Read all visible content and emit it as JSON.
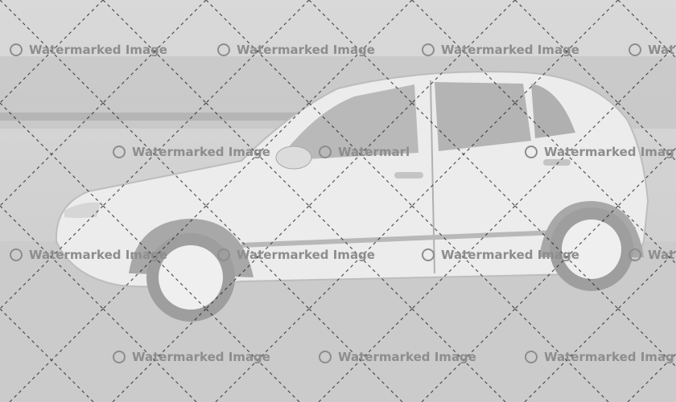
{
  "image": {
    "subject": "car-photo",
    "palette": {
      "background": "#d4d4d4",
      "car_body": "#ececec",
      "window": "#b8b8b8",
      "tire": "#9a9a9a",
      "road": "#c8c8c8"
    }
  },
  "watermark": {
    "label": "Watermarked Image",
    "truncated_labels": [
      "Watermarl",
      "Watermarked Imag",
      "Wat"
    ],
    "color": "#8d8d8d"
  }
}
